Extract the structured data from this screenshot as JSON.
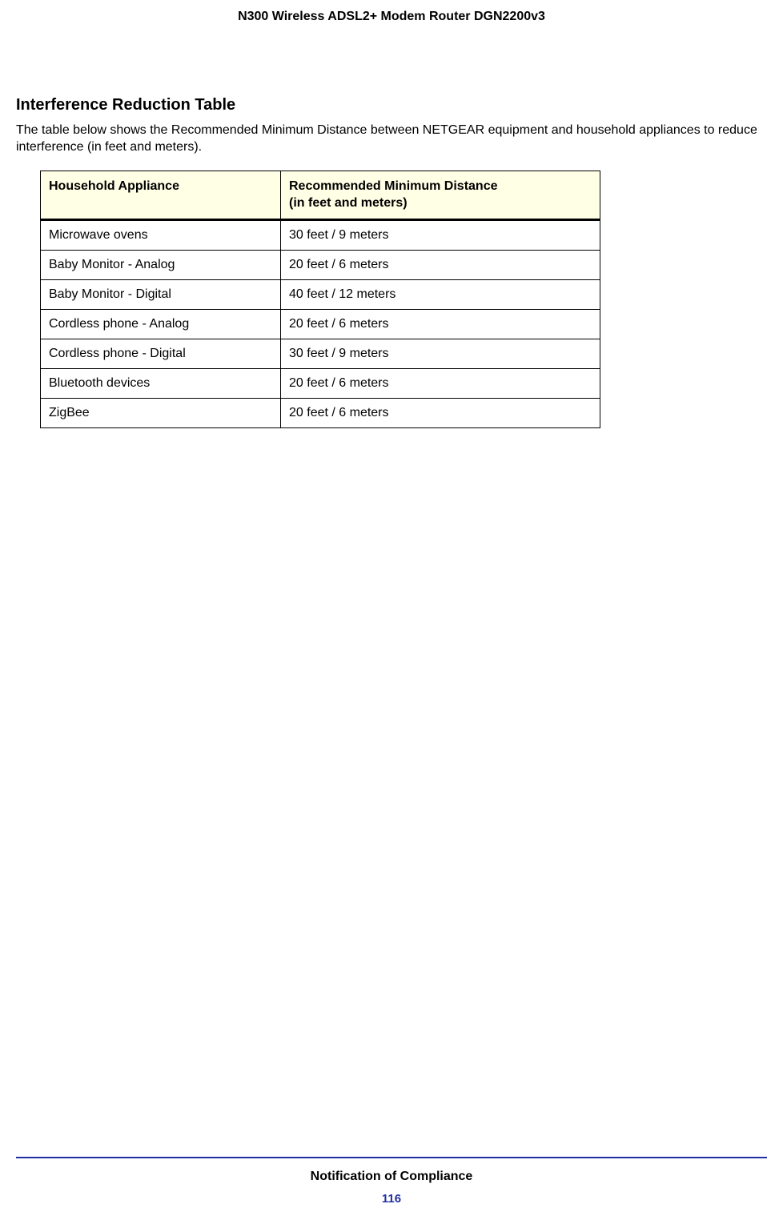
{
  "header_title": "N300 Wireless ADSL2+ Modem Router DGN2200v3",
  "section": {
    "heading": "Interference Reduction Table",
    "intro": "The table below shows the Recommended Minimum Distance between NETGEAR equipment and household appliances to reduce interference (in feet and meters)."
  },
  "table": {
    "header_bg": "#ffffe6",
    "border_color": "#000000",
    "columns": [
      "Household Appliance",
      "Recommended Minimum Distance\n(in feet and meters)"
    ],
    "rows": [
      [
        "Microwave ovens",
        "30 feet / 9 meters"
      ],
      [
        "Baby Monitor - Analog",
        "20 feet / 6 meters"
      ],
      [
        "Baby Monitor - Digital",
        "40 feet / 12 meters"
      ],
      [
        "Cordless phone - Analog",
        "20 feet / 6 meters"
      ],
      [
        "Cordless phone - Digital",
        "30 feet / 9 meters"
      ],
      [
        "Bluetooth devices",
        "20 feet / 6 meters"
      ],
      [
        "ZigBee",
        "20 feet / 6 meters"
      ]
    ]
  },
  "footer": {
    "rule_color": "#2030a0",
    "title": "Notification of Compliance",
    "page_number": "116",
    "page_number_color": "#2030a0"
  }
}
